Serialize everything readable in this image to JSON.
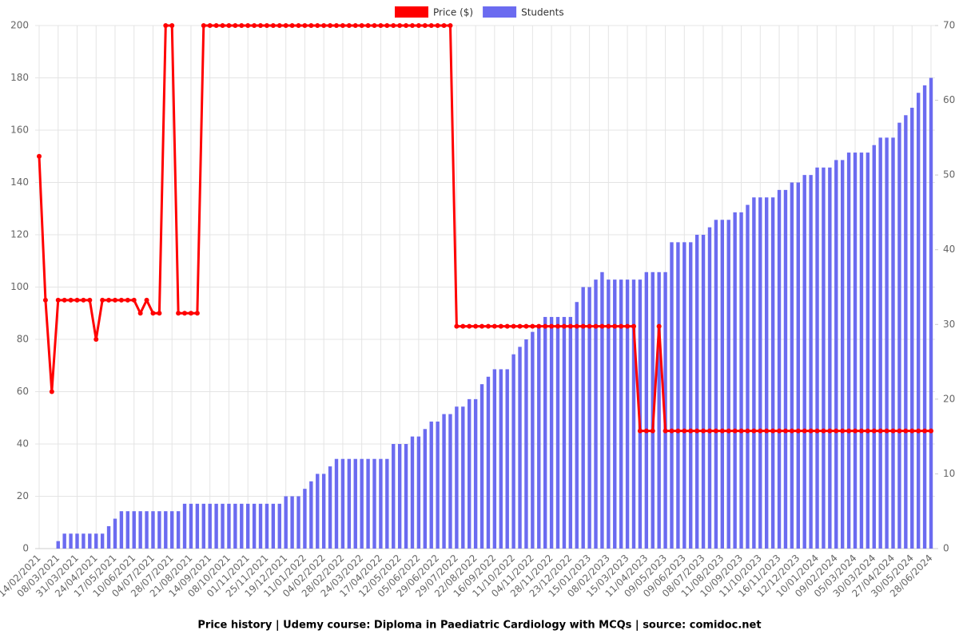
{
  "chart_data": {
    "type": "bar-line",
    "title": "Price history | Udemy course: Diploma in Paediatric Cardiology with MCQs | source: comidoc.net",
    "categories": [
      "14/02/2021",
      null,
      null,
      "08/03/2021",
      null,
      null,
      "31/03/2021",
      null,
      null,
      "24/04/2021",
      null,
      null,
      "17/05/2021",
      null,
      null,
      "10/06/2021",
      null,
      null,
      "04/07/2021",
      null,
      null,
      "28/07/2021",
      null,
      null,
      "21/08/2021",
      null,
      null,
      "14/09/2021",
      null,
      null,
      "08/10/2021",
      null,
      null,
      "01/11/2021",
      null,
      null,
      "25/11/2021",
      null,
      null,
      "19/12/2021",
      null,
      null,
      "11/01/2022",
      null,
      null,
      "04/02/2022",
      null,
      null,
      "28/02/2022",
      null,
      null,
      "24/03/2022",
      null,
      null,
      "17/04/2022",
      null,
      null,
      "12/05/2022",
      null,
      null,
      "05/06/2022",
      null,
      null,
      "29/06/2022",
      null,
      null,
      "29/07/2022",
      null,
      null,
      "22/08/2022",
      null,
      null,
      "16/09/2022",
      null,
      null,
      "11/10/2022",
      null,
      null,
      "04/11/2022",
      null,
      null,
      "28/11/2022",
      null,
      null,
      "23/12/2022",
      null,
      null,
      "15/01/2023",
      null,
      null,
      "08/02/2023",
      null,
      null,
      "15/03/2023",
      null,
      null,
      "11/04/2023",
      null,
      null,
      "09/05/2023",
      null,
      null,
      "09/06/2023",
      null,
      null,
      "08/07/2023",
      null,
      null,
      "11/08/2023",
      null,
      null,
      "10/09/2023",
      null,
      null,
      "11/10/2023",
      null,
      null,
      "16/11/2023",
      null,
      null,
      "12/12/2023",
      null,
      null,
      "10/01/2024",
      null,
      null,
      "09/02/2024",
      null,
      null,
      "05/03/2024",
      null,
      null,
      "30/03/2024",
      null,
      null,
      "27/04/2024",
      null,
      null,
      "30/05/2024",
      null,
      null,
      "28/06/2024"
    ],
    "series": [
      {
        "name": "Price ($)",
        "color": "#ff0000",
        "kind": "line",
        "values": [
          150,
          95,
          60,
          95,
          95,
          95,
          95,
          95,
          95,
          80,
          95,
          95,
          95,
          95,
          95,
          95,
          90,
          95,
          90,
          90,
          200,
          200,
          90,
          90,
          90,
          90,
          200,
          200,
          200,
          200,
          200,
          200,
          200,
          200,
          200,
          200,
          200,
          200,
          200,
          200,
          200,
          200,
          200,
          200,
          200,
          200,
          200,
          200,
          200,
          200,
          200,
          200,
          200,
          200,
          200,
          200,
          200,
          200,
          200,
          200,
          200,
          200,
          200,
          200,
          200,
          200,
          85,
          85,
          85,
          85,
          85,
          85,
          85,
          85,
          85,
          85,
          85,
          85,
          85,
          85,
          85,
          85,
          85,
          85,
          85,
          85,
          85,
          85,
          85,
          85,
          85,
          85,
          85,
          85,
          85,
          45,
          45,
          45,
          85,
          45,
          45,
          45,
          45,
          45,
          45,
          45,
          45,
          45,
          45,
          45,
          45,
          45,
          45,
          45,
          45,
          45,
          45,
          45,
          45,
          45,
          45,
          45,
          45,
          45,
          45,
          45,
          45,
          45,
          45,
          45,
          45,
          45,
          45,
          45,
          45,
          45,
          45,
          45,
          45,
          45,
          45,
          45
        ]
      },
      {
        "name": "Students",
        "color": "#6b6bf0",
        "kind": "bar",
        "axis": "y2",
        "values": [
          0,
          0,
          0,
          1,
          2,
          2,
          2,
          2,
          2,
          2,
          2,
          3,
          4,
          5,
          5,
          5,
          5,
          5,
          5,
          5,
          5,
          5,
          5,
          6,
          6,
          6,
          6,
          6,
          6,
          6,
          6,
          6,
          6,
          6,
          6,
          6,
          6,
          6,
          6,
          7,
          7,
          7,
          8,
          9,
          10,
          10,
          11,
          12,
          12,
          12,
          12,
          12,
          12,
          12,
          12,
          12,
          14,
          14,
          14,
          15,
          15,
          16,
          17,
          17,
          18,
          18,
          19,
          19,
          20,
          20,
          22,
          23,
          24,
          24,
          24,
          26,
          27,
          28,
          29,
          30,
          31,
          31,
          31,
          31,
          31,
          33,
          35,
          35,
          36,
          37,
          36,
          36,
          36,
          36,
          36,
          36,
          37,
          37,
          37,
          37,
          41,
          41,
          41,
          41,
          42,
          42,
          43,
          44,
          44,
          44,
          45,
          45,
          46,
          47,
          47,
          47,
          47,
          48,
          48,
          49,
          49,
          50,
          50,
          51,
          51,
          51,
          52,
          52,
          53,
          53,
          53,
          53,
          54,
          55,
          55,
          55,
          57,
          58,
          59,
          61,
          62,
          63
        ]
      }
    ],
    "ylim": [
      0,
      200
    ],
    "yticks": [
      0,
      20,
      40,
      60,
      80,
      100,
      120,
      140,
      160,
      180,
      200
    ],
    "y2lim": [
      0,
      70
    ],
    "y2ticks": [
      0,
      10,
      20,
      30,
      40,
      50,
      60,
      70
    ],
    "grid": true,
    "legend": "top"
  }
}
